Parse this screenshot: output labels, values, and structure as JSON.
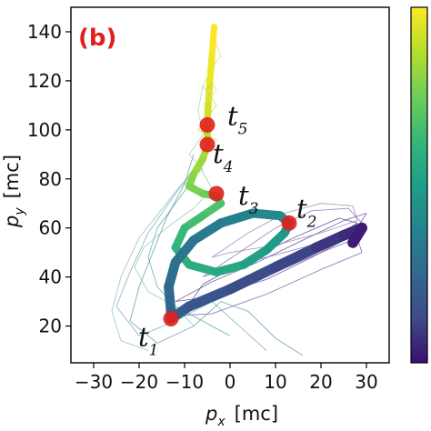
{
  "chart_data": {
    "type": "line",
    "panel_label": "(b)",
    "xlabel": {
      "var": "p",
      "sub": "x",
      "unit": "[mc]"
    },
    "ylabel": {
      "var": "p",
      "sub": "y",
      "unit": "[mc]"
    },
    "xlim": [
      -35,
      35
    ],
    "ylim": [
      5,
      150
    ],
    "xticks": [
      -30,
      -20,
      -10,
      0,
      10,
      20,
      30
    ],
    "xtick_labels": [
      "−30",
      "−20",
      "−10",
      "0",
      "10",
      "20",
      "30"
    ],
    "yticks": [
      20,
      40,
      60,
      80,
      100,
      120,
      140
    ],
    "ytick_labels": [
      "20",
      "40",
      "60",
      "80",
      "100",
      "120",
      "140"
    ],
    "colorbar": {
      "colors": [
        "#3b0f70",
        "#3e4a89",
        "#31688e",
        "#26828e",
        "#1f9e89",
        "#35b779",
        "#6ece58",
        "#b5de2b",
        "#fde725"
      ],
      "direction": "bottom-to-top"
    },
    "main_trajectory": [
      [
        -3.5,
        142
      ],
      [
        -4,
        130
      ],
      [
        -4.5,
        118
      ],
      [
        -4.8,
        110
      ],
      [
        -5,
        102
      ],
      [
        -5,
        94
      ],
      [
        -6,
        88
      ],
      [
        -8,
        82
      ],
      [
        -9,
        77
      ],
      [
        -6,
        74
      ],
      [
        -3,
        73
      ],
      [
        -2,
        70
      ],
      [
        -6,
        65
      ],
      [
        -10,
        60
      ],
      [
        -12,
        52
      ],
      [
        -9,
        45
      ],
      [
        -3,
        42
      ],
      [
        3,
        45
      ],
      [
        8,
        51
      ],
      [
        12,
        58
      ],
      [
        13,
        62
      ],
      [
        11,
        65
      ],
      [
        5,
        66
      ],
      [
        -2,
        62
      ],
      [
        -8,
        55
      ],
      [
        -12,
        46
      ],
      [
        -13.5,
        36
      ],
      [
        -13,
        26
      ],
      [
        -13,
        23
      ],
      [
        -9,
        28
      ],
      [
        0,
        35
      ],
      [
        10,
        44
      ],
      [
        19,
        52
      ],
      [
        25,
        57
      ],
      [
        29,
        60
      ],
      [
        27,
        54
      ]
    ],
    "cloud_trajectories": [
      {
        "color": "#5b3f8f",
        "points": [
          [
            -12,
            30
          ],
          [
            -4,
            38
          ],
          [
            6,
            46
          ],
          [
            16,
            55
          ],
          [
            25,
            63
          ],
          [
            30,
            66
          ],
          [
            27,
            57
          ],
          [
            18,
            48
          ],
          [
            8,
            39
          ],
          [
            -4,
            32
          ],
          [
            -12,
            30
          ]
        ]
      },
      {
        "color": "#6a4d99",
        "points": [
          [
            -14,
            24
          ],
          [
            -2,
            32
          ],
          [
            10,
            42
          ],
          [
            20,
            50
          ],
          [
            28,
            56
          ],
          [
            29,
            50
          ],
          [
            20,
            43
          ],
          [
            8,
            33
          ],
          [
            -4,
            25
          ],
          [
            -14,
            24
          ]
        ]
      },
      {
        "color": "#7e68a8",
        "points": [
          [
            -6,
            40
          ],
          [
            2,
            50
          ],
          [
            10,
            60
          ],
          [
            18,
            67
          ],
          [
            26,
            68
          ],
          [
            29,
            62
          ],
          [
            22,
            55
          ],
          [
            12,
            50
          ],
          [
            2,
            45
          ],
          [
            -6,
            40
          ]
        ]
      },
      {
        "color": "#4b3c86",
        "points": [
          [
            -10,
            26
          ],
          [
            0,
            34
          ],
          [
            12,
            45
          ],
          [
            22,
            55
          ],
          [
            28,
            62
          ],
          [
            24,
            64
          ],
          [
            14,
            56
          ],
          [
            4,
            47
          ],
          [
            -6,
            37
          ],
          [
            -10,
            26
          ]
        ]
      },
      {
        "color": "#8f7cb3",
        "points": [
          [
            -4,
            48
          ],
          [
            4,
            58
          ],
          [
            12,
            66
          ],
          [
            20,
            70
          ],
          [
            27,
            69
          ],
          [
            28,
            63
          ],
          [
            20,
            58
          ],
          [
            10,
            53
          ],
          [
            0,
            50
          ],
          [
            -4,
            48
          ]
        ]
      },
      {
        "color": "#5a8fa8",
        "points": [
          [
            -8,
            90
          ],
          [
            -10,
            78
          ],
          [
            -14,
            64
          ],
          [
            -17,
            50
          ],
          [
            -20,
            36
          ],
          [
            -22,
            22
          ],
          [
            -16,
            13
          ],
          [
            -8,
            20
          ],
          [
            -2,
            30
          ],
          [
            4,
            26
          ],
          [
            10,
            15
          ],
          [
            16,
            8
          ]
        ]
      },
      {
        "color": "#6aa6b4",
        "points": [
          [
            -6,
            88
          ],
          [
            -12,
            74
          ],
          [
            -18,
            58
          ],
          [
            -22,
            42
          ],
          [
            -25,
            28
          ],
          [
            -20,
            16
          ],
          [
            -12,
            22
          ],
          [
            -4,
            30
          ],
          [
            2,
            20
          ],
          [
            8,
            10
          ]
        ]
      },
      {
        "color": "#7dbcbd",
        "points": [
          [
            -5,
            95
          ],
          [
            -8,
            84
          ],
          [
            -14,
            70
          ],
          [
            -20,
            56
          ],
          [
            -24,
            40
          ],
          [
            -26,
            26
          ],
          [
            -24,
            14
          ],
          [
            -18,
            10
          ]
        ]
      },
      {
        "color": "#4fa39c",
        "points": [
          [
            -8,
            80
          ],
          [
            -12,
            70
          ],
          [
            -16,
            60
          ],
          [
            -18,
            48
          ],
          [
            -16,
            36
          ],
          [
            -12,
            28
          ],
          [
            -6,
            22
          ],
          [
            0,
            16
          ]
        ]
      },
      {
        "color": "#82c7a8",
        "points": [
          [
            -7,
            86
          ],
          [
            -4,
            76
          ],
          [
            -8,
            68
          ],
          [
            -14,
            60
          ],
          [
            -19,
            52
          ],
          [
            -21,
            44
          ],
          [
            -18,
            34
          ],
          [
            -12,
            28
          ],
          [
            -8,
            20
          ]
        ]
      },
      {
        "color": "#9fd49a",
        "points": [
          [
            -6,
            118
          ],
          [
            -7,
            108
          ],
          [
            -6,
            98
          ],
          [
            -9,
            90
          ],
          [
            -6,
            84
          ],
          [
            -10,
            78
          ]
        ]
      },
      {
        "color": "#b5de2b",
        "points": [
          [
            -3,
            128
          ],
          [
            -6,
            118
          ],
          [
            -3,
            110
          ],
          [
            -7,
            100
          ],
          [
            -3,
            96
          ],
          [
            -6,
            88
          ]
        ]
      },
      {
        "color": "#d7e34a",
        "points": [
          [
            -4,
            140
          ],
          [
            -2,
            130
          ],
          [
            -5,
            124
          ],
          [
            -3,
            116
          ],
          [
            -6,
            110
          ]
        ]
      }
    ],
    "markers": [
      {
        "label": "t",
        "sub": "1",
        "x": -13,
        "y": 23
      },
      {
        "label": "t",
        "sub": "2",
        "x": 13,
        "y": 62
      },
      {
        "label": "t",
        "sub": "3",
        "x": -3,
        "y": 74
      },
      {
        "label": "t",
        "sub": "4",
        "x": -5,
        "y": 94
      },
      {
        "label": "t",
        "sub": "5",
        "x": -5,
        "y": 102
      }
    ],
    "grid": false
  }
}
